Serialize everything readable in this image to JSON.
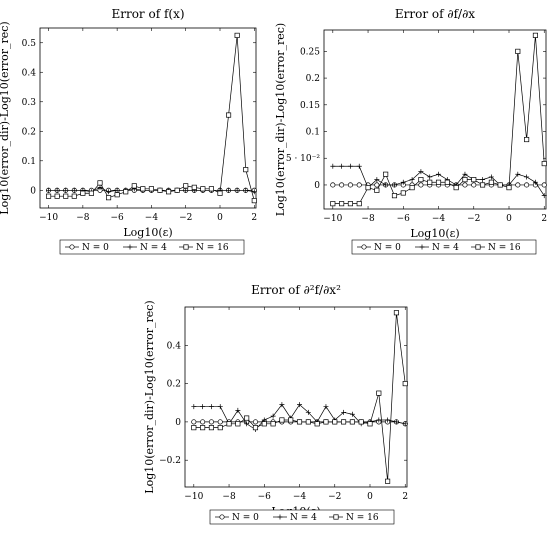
{
  "legend_labels": [
    "N = 0",
    "N = 4",
    "N = 16"
  ],
  "chart_data": [
    {
      "type": "line",
      "title": "Error of f(x)",
      "xlabel": "Log10(ε)",
      "ylabel": "Log10(error_dir)-Log10(error_rec)",
      "xlim": [
        -10.5,
        2.1
      ],
      "ylim": [
        -0.06,
        0.55
      ],
      "xticks": [
        -10,
        -8,
        -6,
        -4,
        -2,
        0,
        2
      ],
      "yticks": [
        0,
        0.1,
        0.2,
        0.3,
        0.4,
        0.5
      ],
      "ytick_labels": [
        "0",
        "0.1",
        "0.2",
        "0.3",
        "0.4",
        "0.5"
      ],
      "x": [
        -10,
        -9.5,
        -9,
        -8.5,
        -8,
        -7.5,
        -7,
        -6.5,
        -6,
        -5.5,
        -5,
        -4.5,
        -4,
        -3.5,
        -3,
        -2.5,
        -2,
        -1.5,
        -1,
        -0.5,
        0,
        0.5,
        1,
        1.5,
        2
      ],
      "series": [
        {
          "name": "N = 0",
          "marker": "circle",
          "values": [
            0,
            0,
            0,
            0,
            0,
            0,
            0,
            0,
            0,
            0,
            0,
            0,
            0,
            0,
            0,
            0,
            0,
            0,
            0,
            0,
            0,
            0,
            0,
            0,
            0
          ]
        },
        {
          "name": "N = 4",
          "marker": "plus",
          "values": [
            0,
            0,
            0,
            0,
            0,
            -0.005,
            0.01,
            -0.005,
            0,
            0,
            0.005,
            0,
            0,
            0,
            0,
            0,
            0,
            0,
            0,
            0,
            0,
            0,
            0,
            0,
            -0.005
          ]
        },
        {
          "name": "N = 16",
          "marker": "square",
          "values": [
            -0.02,
            -0.02,
            -0.02,
            -0.02,
            -0.01,
            -0.01,
            0.025,
            -0.025,
            -0.015,
            -0.005,
            0.015,
            0.005,
            0.005,
            0,
            -0.005,
            0,
            0.015,
            0.01,
            0.005,
            0.005,
            -0.01,
            0.255,
            0.525,
            0.07,
            -0.035
          ]
        }
      ]
    },
    {
      "type": "line",
      "title": "Error of ∂f/∂x",
      "xlabel": "Log10(ε)",
      "ylabel": "Log10(error_dir)-Log10(error_rec)",
      "xlim": [
        -10.5,
        2.1
      ],
      "ylim": [
        -0.045,
        0.29
      ],
      "xticks": [
        -10,
        -8,
        -6,
        -4,
        -2,
        0,
        2
      ],
      "yticks": [
        0,
        0.05,
        0.1,
        0.15,
        0.2,
        0.25
      ],
      "ytick_labels": [
        "0",
        "5 · 10⁻²",
        "0.1",
        "0.15",
        "0.2",
        "0.25"
      ],
      "x": [
        -10,
        -9.5,
        -9,
        -8.5,
        -8,
        -7.5,
        -7,
        -6.5,
        -6,
        -5.5,
        -5,
        -4.5,
        -4,
        -3.5,
        -3,
        -2.5,
        -2,
        -1.5,
        -1,
        -0.5,
        0,
        0.5,
        1,
        1.5,
        2
      ],
      "series": [
        {
          "name": "N = 0",
          "marker": "circle",
          "values": [
            0,
            0,
            0,
            0,
            0,
            0,
            0,
            0,
            0,
            0,
            0,
            0,
            0,
            0,
            0,
            0,
            0,
            0,
            0,
            0,
            0,
            0,
            0,
            0,
            0
          ]
        },
        {
          "name": "N = 4",
          "marker": "plus",
          "values": [
            0.035,
            0.035,
            0.035,
            0.035,
            -0.005,
            0.01,
            0,
            0,
            0.005,
            0.01,
            0.025,
            0.015,
            0.02,
            0.01,
            0,
            0.02,
            0.01,
            0.01,
            0.015,
            0,
            0,
            0.02,
            0.015,
            0.005,
            -0.02
          ]
        },
        {
          "name": "N = 16",
          "marker": "square",
          "values": [
            -0.035,
            -0.035,
            -0.035,
            -0.035,
            -0.005,
            -0.01,
            0.02,
            -0.02,
            -0.015,
            -0.005,
            0.01,
            0.005,
            0.005,
            0.005,
            -0.005,
            0.01,
            0.01,
            0,
            0.005,
            0,
            -0.005,
            0.25,
            0.085,
            0.28,
            0.04
          ]
        }
      ]
    },
    {
      "type": "line",
      "title": "Error of ∂²f/∂x²",
      "xlabel": "Log10(ε)",
      "ylabel": "Log10(error_dir)-Log10(error_rec)",
      "xlim": [
        -10.5,
        2.1
      ],
      "ylim": [
        -0.34,
        0.6
      ],
      "xticks": [
        -10,
        -8,
        -6,
        -4,
        -2,
        0,
        2
      ],
      "yticks": [
        -0.2,
        0,
        0.2,
        0.4
      ],
      "ytick_labels": [
        "−0.2",
        "0",
        "0.2",
        "0.4"
      ],
      "x": [
        -10,
        -9.5,
        -9,
        -8.5,
        -8,
        -7.5,
        -7,
        -6.5,
        -6,
        -5.5,
        -5,
        -4.5,
        -4,
        -3.5,
        -3,
        -2.5,
        -2,
        -1.5,
        -1,
        -0.5,
        0,
        0.5,
        1,
        1.5,
        2
      ],
      "series": [
        {
          "name": "N = 0",
          "marker": "circle",
          "values": [
            0,
            0,
            0,
            0,
            0,
            0,
            0,
            0,
            0,
            0,
            0,
            0,
            0,
            0,
            0,
            0,
            0,
            0,
            0,
            0,
            0,
            0,
            0,
            0,
            -0.01
          ]
        },
        {
          "name": "N = 4",
          "marker": "plus",
          "values": [
            0.08,
            0.08,
            0.08,
            0.08,
            -0.01,
            0.06,
            -0.01,
            -0.04,
            0.01,
            0.03,
            0.09,
            0.02,
            0.09,
            0.05,
            0,
            0.08,
            0.01,
            0.05,
            0.04,
            -0.01,
            0,
            0.01,
            0.01,
            0,
            -0.01
          ]
        },
        {
          "name": "N = 16",
          "marker": "square",
          "values": [
            -0.03,
            -0.03,
            -0.03,
            -0.03,
            -0.01,
            -0.01,
            0.02,
            -0.03,
            -0.01,
            -0.01,
            0.01,
            0.01,
            0,
            0,
            -0.01,
            0,
            0,
            0,
            0,
            0,
            -0.01,
            0.15,
            -0.31,
            0.57,
            0.2
          ]
        }
      ]
    }
  ]
}
